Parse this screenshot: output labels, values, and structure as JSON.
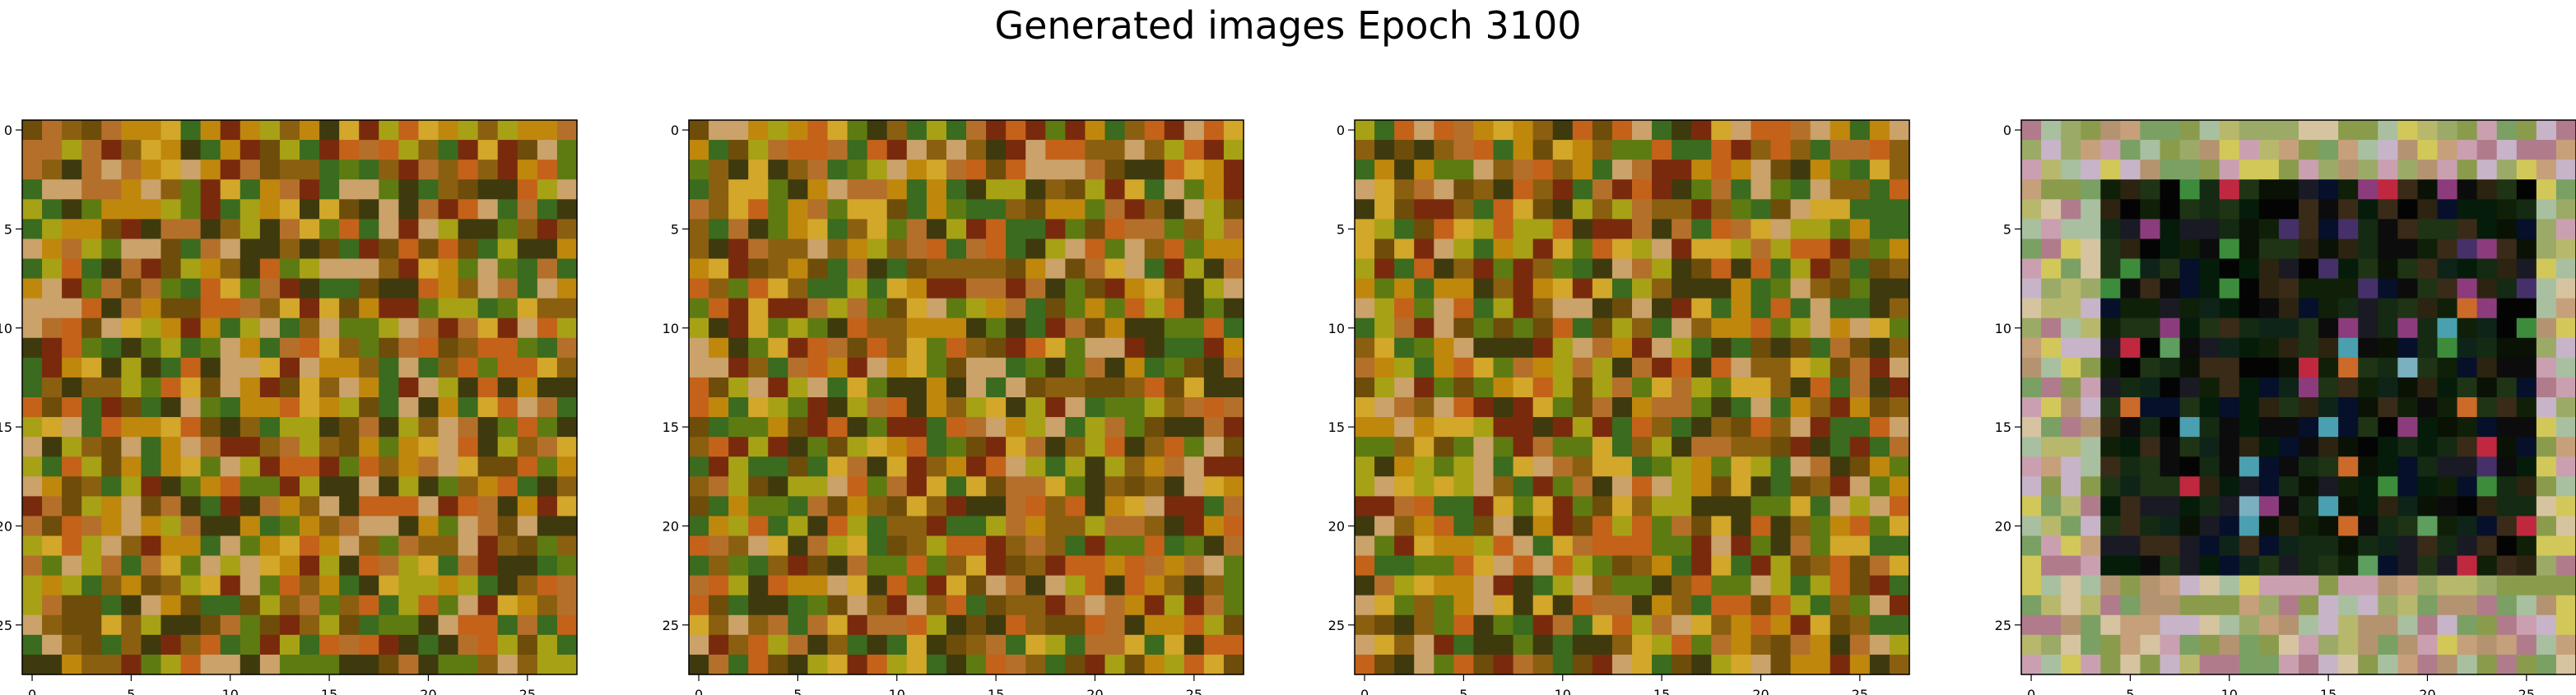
{
  "title": "Generated images Epoch 3100",
  "chart_data": {
    "type": "heatmap",
    "title": "Generated images Epoch 3100",
    "grid": false,
    "panels": [
      {
        "name": "",
        "shape": [
          28,
          28
        ],
        "xticks": [
          0,
          5,
          10,
          15,
          20,
          25
        ],
        "yticks": [
          0,
          5,
          10,
          15,
          20,
          25
        ],
        "xlim": [
          -0.5,
          27.5
        ],
        "ylim": [
          27.5,
          -0.5
        ],
        "palette": [
          "#b4702a",
          "#c0870d",
          "#8b5f10",
          "#6e4c0a",
          "#a7a116",
          "#5e7b12",
          "#d2a72a",
          "#c4621a",
          "#3e3a0e",
          "#7a2a0c",
          "#3a6b1e",
          "#caa26a"
        ]
      },
      {
        "name": "",
        "shape": [
          28,
          28
        ],
        "xticks": [
          0,
          5,
          10,
          15,
          20,
          25
        ],
        "yticks": [
          0,
          5,
          10,
          15,
          20,
          25
        ],
        "xlim": [
          -0.5,
          27.5
        ],
        "ylim": [
          27.5,
          -0.5
        ],
        "palette": [
          "#b4702a",
          "#c0870d",
          "#8b5f10",
          "#6e4c0a",
          "#a7a116",
          "#5e7b12",
          "#d2a72a",
          "#c4621a",
          "#3e3a0e",
          "#7a2a0c",
          "#3a6b1e",
          "#caa26a"
        ]
      },
      {
        "name": "",
        "shape": [
          28,
          28
        ],
        "xticks": [
          0,
          5,
          10,
          15,
          20,
          25
        ],
        "yticks": [
          0,
          5,
          10,
          15,
          20,
          25
        ],
        "xlim": [
          -0.5,
          27.5
        ],
        "ylim": [
          27.5,
          -0.5
        ],
        "palette": [
          "#b4702a",
          "#c0870d",
          "#8b5f10",
          "#6e4c0a",
          "#a7a116",
          "#5e7b12",
          "#d2a72a",
          "#c4621a",
          "#3e3a0e",
          "#7a2a0c",
          "#3a6b1e",
          "#caa26a"
        ]
      },
      {
        "name": "",
        "shape": [
          28,
          28
        ],
        "xticks": [
          0,
          5,
          10,
          15,
          20,
          25
        ],
        "yticks": [
          0,
          5,
          10,
          15,
          20,
          25
        ],
        "xlim": [
          -0.5,
          27.5
        ],
        "ylim": [
          27.5,
          -0.5
        ],
        "outer_palette": [
          "#c6a07a",
          "#b8b86c",
          "#d2c85a",
          "#9caa68",
          "#caa0b0",
          "#b07c8c",
          "#7aa064",
          "#c8b4c8",
          "#a8c0a0",
          "#8a9c4c",
          "#d6c4a0",
          "#b49470"
        ],
        "inner_palette": [
          "#0a1206",
          "#061c0a",
          "#142a12",
          "#0c0c0c",
          "#1e3414",
          "#2c2410",
          "#06102a",
          "#0e2418",
          "#3a2a18",
          "#102008",
          "#040404",
          "#1a1a24"
        ],
        "accent_palette": [
          "#4aa0b0",
          "#c02840",
          "#7ab0c0",
          "#46306a",
          "#3c8c3c",
          "#cc6a2a",
          "#5e9e5e",
          "#8c3c7c"
        ]
      }
    ]
  }
}
